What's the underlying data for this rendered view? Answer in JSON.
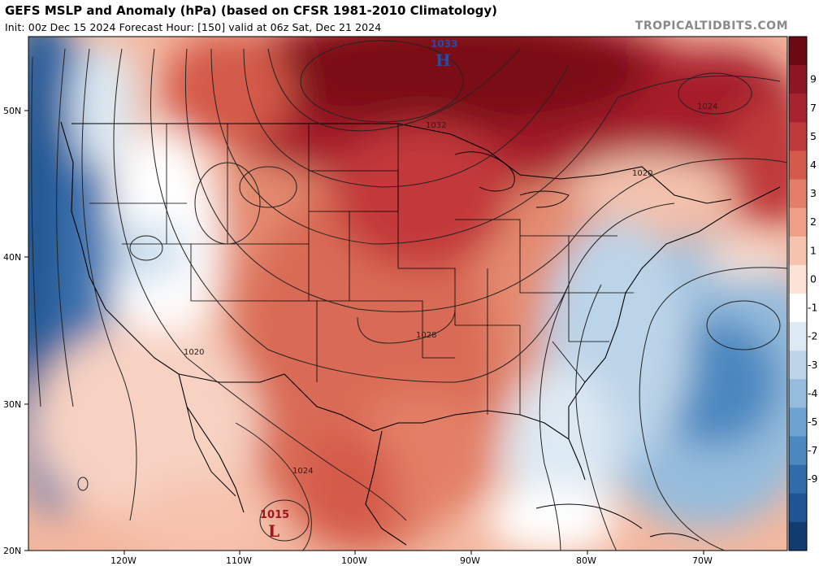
{
  "header": {
    "title": "GEFS MSLP and Anomaly (hPa) (based on CFSR 1981-2010 Climatology)",
    "subtitle": "Init: 00z Dec 15 2024   Forecast Hour: [150]   valid at 06z Sat, Dec 21 2024",
    "watermark": "TROPICALTIDBITS.COM"
  },
  "map": {
    "latitude_labels": [
      "50N",
      "40N",
      "30N",
      "20N"
    ],
    "longitude_labels": [
      "120W",
      "110W",
      "100W",
      "90W",
      "80W",
      "70W"
    ],
    "pressure_centers": [
      {
        "type": "H",
        "value": "1033",
        "color": "#1f4fa8"
      },
      {
        "type": "L",
        "value": "1015",
        "color": "#a0161c"
      }
    ],
    "isobar_labels": [
      "1032",
      "1024",
      "1020",
      "1028",
      "1020",
      "1024"
    ]
  },
  "colorbar": {
    "labels": [
      "9",
      "7",
      "5",
      "4",
      "3",
      "2",
      "1",
      "0",
      "-1",
      "-2",
      "-3",
      "-4",
      "-5",
      "-7",
      "-9"
    ],
    "colors": [
      "#6b0a13",
      "#8d1622",
      "#a62430",
      "#bf3a3a",
      "#d45a4a",
      "#e37f66",
      "#ef9f86",
      "#f6c3ae",
      "#fbe3d6",
      "#ffffff",
      "#dde9f3",
      "#bcd4e8",
      "#95bcdc",
      "#6ea3cf",
      "#4b88c0",
      "#2f6ca9",
      "#1f5592",
      "#123c70"
    ]
  }
}
